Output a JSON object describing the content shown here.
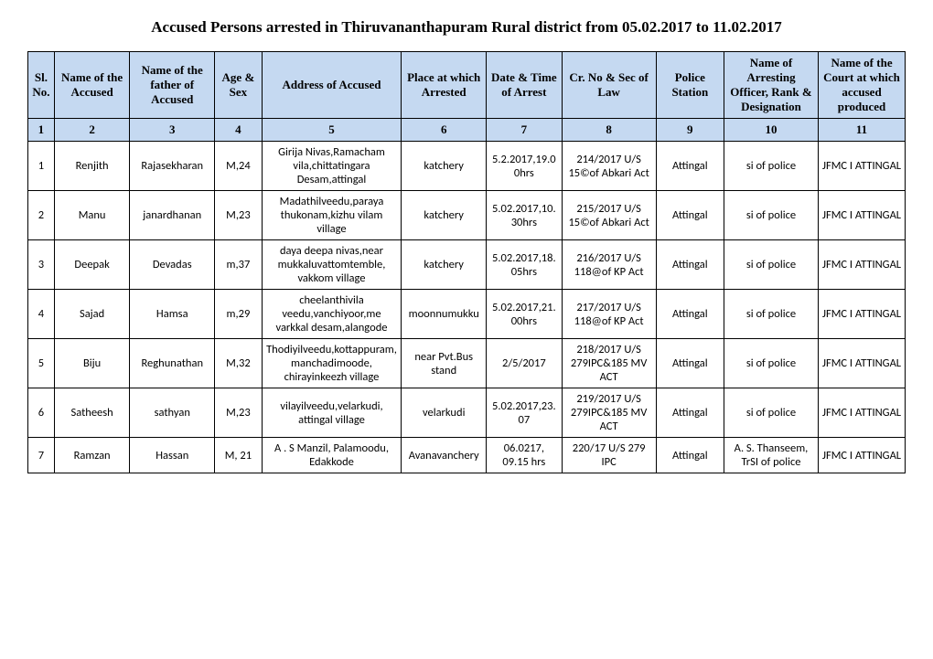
{
  "title": "Accused Persons arrested in   Thiruvananthapuram Rural  district from   05.02.2017 to 11.02.2017",
  "headers": [
    "Sl. No.",
    "Name of the Accused",
    "Name of the father of Accused",
    "Age & Sex",
    "Address of Accused",
    "Place at which Arrested",
    "Date & Time of Arrest",
    "Cr. No & Sec of Law",
    "Police Station",
    "Name of Arresting Officer, Rank & Designation",
    "Name of the Court at which accused produced"
  ],
  "numberRow": [
    "1",
    "2",
    "3",
    "4",
    "5",
    "6",
    "7",
    "8",
    "9",
    "10",
    "11"
  ],
  "rows": [
    {
      "slno": "1",
      "name": "Renjith",
      "father": "Rajasekharan",
      "age": "M,24",
      "address": "Girija Nivas,Ramacham vila,chittatingara Desam,attingal",
      "place": "katchery",
      "datetime": "5.2.2017,19.00hrs",
      "crno": "214/2017 U/S 15©of Abkari Act",
      "ps": "Attingal",
      "officer": "si of police",
      "court": "JFMC I ATTINGAL"
    },
    {
      "slno": "2",
      "name": "Manu",
      "father": "janardhanan",
      "age": "M,23",
      "address": "Madathilveedu,paraya thukonam,kizhu vilam village",
      "place": "katchery",
      "datetime": "5.02.2017,10.30hrs",
      "crno": "215/2017 U/S 15©of Abkari Act",
      "ps": "Attingal",
      "officer": "si of police",
      "court": "JFMC I ATTINGAL"
    },
    {
      "slno": "3",
      "name": "Deepak",
      "father": "Devadas",
      "age": "m,37",
      "address": "daya deepa nivas,near mukkaluvattomtemble, vakkom village",
      "place": "katchery",
      "datetime": "5.02.2017,18.05hrs",
      "crno": "216/2017 U/S 118@of KP Act",
      "ps": "Attingal",
      "officer": "si of police",
      "court": "JFMC I ATTINGAL"
    },
    {
      "slno": "4",
      "name": "Sajad",
      "father": "Hamsa",
      "age": "m,29",
      "address": "cheelanthivila veedu,vanchiyoor,me varkkal desam,alangode",
      "place": "moonnumukku",
      "datetime": "5.02.2017,21.00hrs",
      "crno": "217/2017 U/S 118@of KP Act",
      "ps": "Attingal",
      "officer": "si of police",
      "court": "JFMC I ATTINGAL"
    },
    {
      "slno": "5",
      "name": "Biju",
      "father": "Reghunathan",
      "age": "M,32",
      "address": "Thodiyilveedu,kottappuram,manchadimoode, chirayinkeezh village",
      "place": "near Pvt.Bus stand",
      "datetime": "2/5/2017",
      "crno": "218/2017 U/S 279IPC&185 MV ACT",
      "ps": "Attingal",
      "officer": "si of police",
      "court": "JFMC I ATTINGAL"
    },
    {
      "slno": "6",
      "name": "Satheesh",
      "father": "sathyan",
      "age": "M,23",
      "address": "vilayilveedu,velarkudi, attingal village",
      "place": "velarkudi",
      "datetime": "5.02.2017,23.07",
      "crno": "219/2017 U/S 279IPC&185 MV ACT",
      "ps": "Attingal",
      "officer": "si of police",
      "court": "JFMC I ATTINGAL"
    },
    {
      "slno": "7",
      "name": "Ramzan",
      "father": "Hassan",
      "age": "M, 21",
      "address": "A . S Manzil, Palamoodu, Edakkode",
      "place": "Avanavanchery",
      "datetime": "06.0217, 09.15 hrs",
      "crno": "220/17 U/S 279 IPC",
      "ps": "Attingal",
      "officer": "A. S. Thanseem, TrSI of police",
      "court": "JFMC I ATTINGAL"
    }
  ],
  "style": {
    "header_bg": "#c5d9f1",
    "border_color": "#000000",
    "title_fontsize": 17,
    "header_fontsize": 13,
    "cell_fontsize": 12.5,
    "header_font": "Times New Roman",
    "cell_font": "Calibri"
  }
}
